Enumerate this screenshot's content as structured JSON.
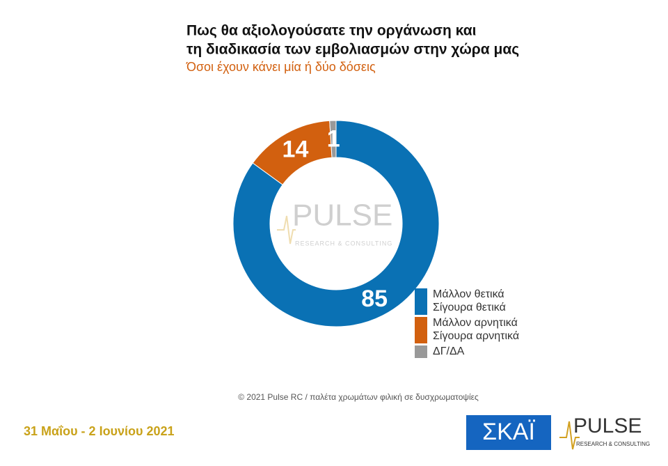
{
  "chart_data": {
    "type": "donut",
    "title": [
      "Πως θα αξιολογούσατε την οργάνωση και",
      "τη διαδικασία των εμβολιασμών στην χώρα μας"
    ],
    "subtitle": "Όσοι έχουν κάνει μία ή δύο δόσεις",
    "categories": [
      [
        "Μάλλον θετικά",
        "Σίγουρα θετικά"
      ],
      [
        "Μάλλον αρνητικά",
        "Σίγουρα αρνητικά"
      ],
      [
        "ΔΓ/ΔΑ"
      ]
    ],
    "values": [
      85,
      14,
      1
    ],
    "colors": [
      "#0a71b4",
      "#d2600f",
      "#999999"
    ],
    "legend": "bottom-right"
  },
  "watermark": {
    "brand": "PULSE",
    "tagline": "RESEARCH & CONSULTING"
  },
  "footer": {
    "credit": "© 2021 Pulse RC  /  παλέτα χρωμάτων φιλική σε δυσχρωματοψίες",
    "date": "31 Μαΐου - 2 Ιουνίου 2021"
  },
  "logos": {
    "skai": "ΣΚΑΪ",
    "pulse": "PULSE",
    "pulse_tagline": "RESEARCH & CONSULTING"
  }
}
